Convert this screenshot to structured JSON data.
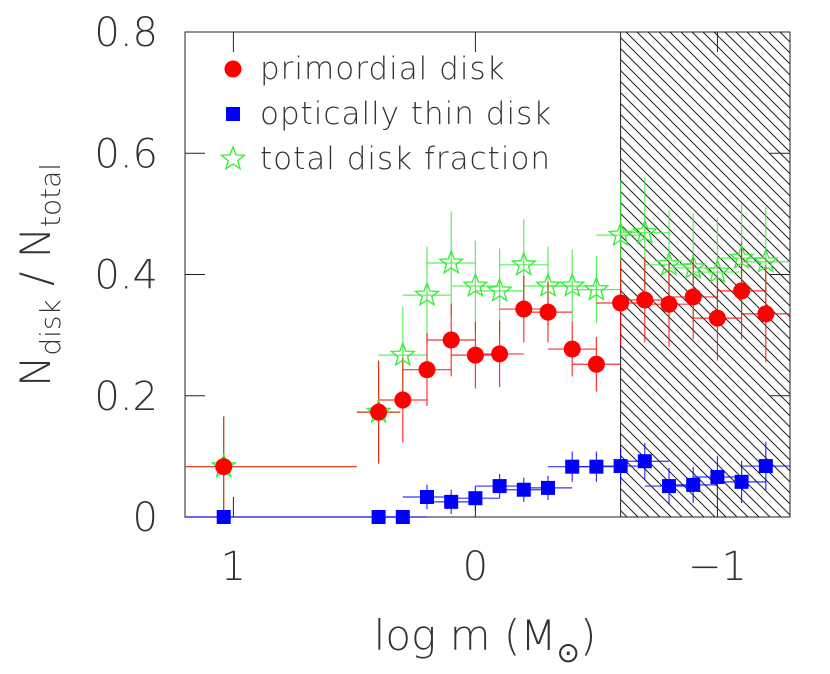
{
  "chart_data": {
    "type": "errorbar",
    "xlabel": [
      "log m (M",
      "⊙",
      ")"
    ],
    "ylabel": [
      "N",
      "disk",
      " / N",
      "total"
    ],
    "x": [
      1.04,
      0.4,
      0.3,
      0.2,
      0.1,
      0.0,
      -0.1,
      -0.2,
      -0.3,
      -0.4,
      -0.5,
      -0.6,
      -0.7,
      -0.8,
      -0.9,
      -1.0,
      -1.1,
      -1.2
    ],
    "x_left": [
      1.2,
      0.49,
      0.4,
      0.3,
      0.2,
      0.1,
      0.0,
      -0.1,
      -0.2,
      -0.3,
      -0.4,
      -0.5,
      -0.6,
      -0.7,
      -0.8,
      -0.9,
      -1.0,
      -1.1
    ],
    "x_right": [
      0.49,
      0.31,
      0.2,
      0.1,
      0.0,
      -0.1,
      -0.2,
      -0.3,
      -0.4,
      -0.5,
      -0.6,
      -0.7,
      -0.8,
      -0.9,
      -1.0,
      -1.1,
      -1.2,
      -1.3
    ],
    "series": [
      {
        "name": "primordial disk",
        "color": "#ff0000",
        "marker": "circle",
        "values": [
          0.083,
          0.173,
          0.193,
          0.243,
          0.292,
          0.267,
          0.269,
          0.343,
          0.338,
          0.277,
          0.252,
          0.353,
          0.358,
          0.351,
          0.363,
          0.328,
          0.373,
          0.335
        ],
        "yerr": [
          0.083,
          0.085,
          0.07,
          0.06,
          0.06,
          0.055,
          0.055,
          0.055,
          0.05,
          0.045,
          0.045,
          0.07,
          0.07,
          0.07,
          0.07,
          0.07,
          0.08,
          0.08
        ]
      },
      {
        "name": "optically thin disk",
        "color": "#0000ff",
        "marker": "square",
        "values": [
          0,
          0,
          0,
          0.033,
          0.025,
          0.031,
          0.051,
          0.045,
          0.048,
          0.083,
          0.083,
          0.084,
          0.092,
          0.051,
          0.053,
          0.066,
          0.058,
          0.084
        ],
        "yerr": [
          0,
          0,
          0,
          0.02,
          0.02,
          0.02,
          0.02,
          0.02,
          0.02,
          0.025,
          0.025,
          0.03,
          0.03,
          0.03,
          0.03,
          0.035,
          0.035,
          0.04
        ]
      },
      {
        "name": "total disk fraction",
        "color": "#33ee33",
        "marker": "star",
        "values": [
          0.083,
          0.173,
          0.267,
          0.366,
          0.419,
          0.381,
          0.373,
          0.416,
          0.381,
          0.381,
          0.375,
          0.465,
          0.469,
          0.416,
          0.411,
          0.404,
          0.427,
          0.421
        ],
        "yerr": [
          0.083,
          0.085,
          0.08,
          0.08,
          0.085,
          0.075,
          0.07,
          0.075,
          0.065,
          0.06,
          0.055,
          0.09,
          0.09,
          0.09,
          0.09,
          0.09,
          0.09,
          0.09
        ]
      }
    ],
    "xlim": [
      1.2,
      -1.3
    ],
    "ylim": [
      0,
      0.8
    ],
    "xticks": [
      1,
      0,
      {
        "value": -1,
        "label": "−1"
      }
    ],
    "yticks": [
      0,
      0.2,
      0.4,
      0.6,
      0.8
    ],
    "shaded_from": -0.6,
    "legend": "upper left"
  }
}
